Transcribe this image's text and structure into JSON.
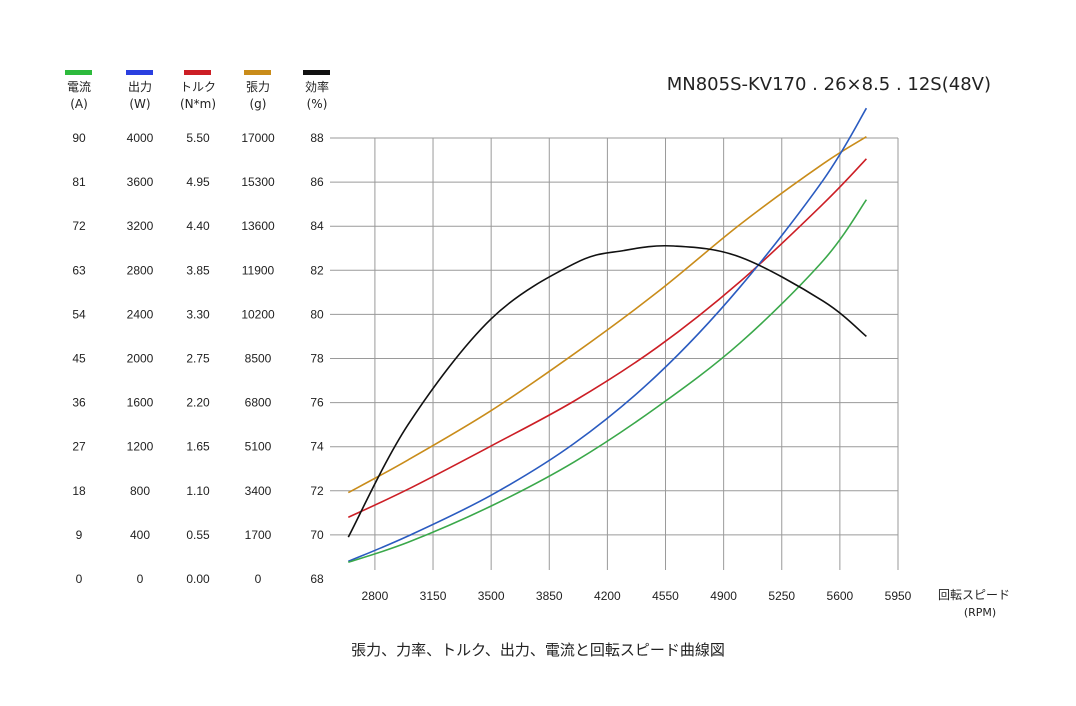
{
  "chart_data": {
    "type": "line",
    "title": "MN805S-KV170 . 26×8.5 . 12S(48V)",
    "caption": "張力、力率、トルク、出力、電流と回転スピード曲線図",
    "xlabel": "回転スピード",
    "xunit": "(RPM)",
    "x_ticks": [
      "2800",
      "3150",
      "3500",
      "3850",
      "4200",
      "4550",
      "4900",
      "5250",
      "5600",
      "5950"
    ],
    "xlim": [
      2650,
      5950
    ],
    "grid": true,
    "axes": [
      {
        "key": "current",
        "name": "電流",
        "unit": "(A)",
        "color": "#2dba3c",
        "ticks": [
          "0",
          "9",
          "18",
          "27",
          "36",
          "45",
          "54",
          "63",
          "72",
          "81",
          "90"
        ],
        "ylim": [
          0,
          90
        ]
      },
      {
        "key": "power",
        "name": "出力",
        "unit": "(W)",
        "color": "#2a3fe0",
        "ticks": [
          "0",
          "400",
          "800",
          "1200",
          "1600",
          "2000",
          "2400",
          "2800",
          "3200",
          "3600",
          "4000"
        ],
        "ylim": [
          0,
          4000
        ]
      },
      {
        "key": "torque",
        "name": "トルク",
        "unit": "(N*m)",
        "color": "#cc1e25",
        "ticks": [
          "0.00",
          "0.55",
          "1.10",
          "1.65",
          "2.20",
          "2.75",
          "3.30",
          "3.85",
          "4.40",
          "4.95",
          "5.50"
        ],
        "ylim": [
          0,
          5.5
        ]
      },
      {
        "key": "thrust",
        "name": "張力",
        "unit": "(g)",
        "color": "#c98c1a",
        "ticks": [
          "0",
          "1700",
          "3400",
          "5100",
          "6800",
          "8500",
          "10200",
          "11900",
          "13600",
          "15300",
          "17000"
        ],
        "ylim": [
          0,
          17000
        ]
      },
      {
        "key": "efficiency",
        "name": "効率",
        "unit": "(%)",
        "color": "#111111",
        "ticks": [
          "68",
          "70",
          "72",
          "74",
          "76",
          "78",
          "80",
          "82",
          "84",
          "86",
          "88"
        ],
        "ylim": [
          68,
          88
        ]
      }
    ],
    "series": [
      {
        "name": "張力",
        "axis": "thrust",
        "color": "#c98c1a",
        "points": [
          [
            2640,
            3330
          ],
          [
            3000,
            4590
          ],
          [
            3500,
            6490
          ],
          [
            4000,
            8680
          ],
          [
            4500,
            11050
          ],
          [
            5000,
            13670
          ],
          [
            5500,
            16010
          ],
          [
            5760,
            17050
          ]
        ]
      },
      {
        "name": "トルク",
        "axis": "torque",
        "color": "#cc1e25",
        "points": [
          [
            2640,
            0.77
          ],
          [
            3000,
            1.12
          ],
          [
            3500,
            1.66
          ],
          [
            4000,
            2.22
          ],
          [
            4500,
            2.89
          ],
          [
            5000,
            3.71
          ],
          [
            5500,
            4.68
          ],
          [
            5760,
            5.24
          ]
        ]
      },
      {
        "name": "出力",
        "axis": "power",
        "color": "#2a5bc0",
        "points": [
          [
            2640,
            160
          ],
          [
            3000,
            390
          ],
          [
            3500,
            760
          ],
          [
            4000,
            1230
          ],
          [
            4500,
            1850
          ],
          [
            5000,
            2650
          ],
          [
            5500,
            3620
          ],
          [
            5760,
            4270
          ]
        ]
      },
      {
        "name": "電流",
        "axis": "current",
        "color": "#3aa84a",
        "points": [
          [
            2640,
            3.4
          ],
          [
            3000,
            7.5
          ],
          [
            3500,
            14.9
          ],
          [
            4000,
            23.9
          ],
          [
            4500,
            35.1
          ],
          [
            5000,
            48.2
          ],
          [
            5500,
            65.0
          ],
          [
            5760,
            77.4
          ]
        ]
      },
      {
        "name": "効率",
        "axis": "efficiency",
        "color": "#111111",
        "points": [
          [
            2640,
            69.9
          ],
          [
            3000,
            75.0
          ],
          [
            3500,
            79.8
          ],
          [
            4000,
            82.3
          ],
          [
            4300,
            82.9
          ],
          [
            4600,
            83.1
          ],
          [
            5000,
            82.6
          ],
          [
            5500,
            80.6
          ],
          [
            5760,
            79.0
          ]
        ]
      }
    ]
  }
}
